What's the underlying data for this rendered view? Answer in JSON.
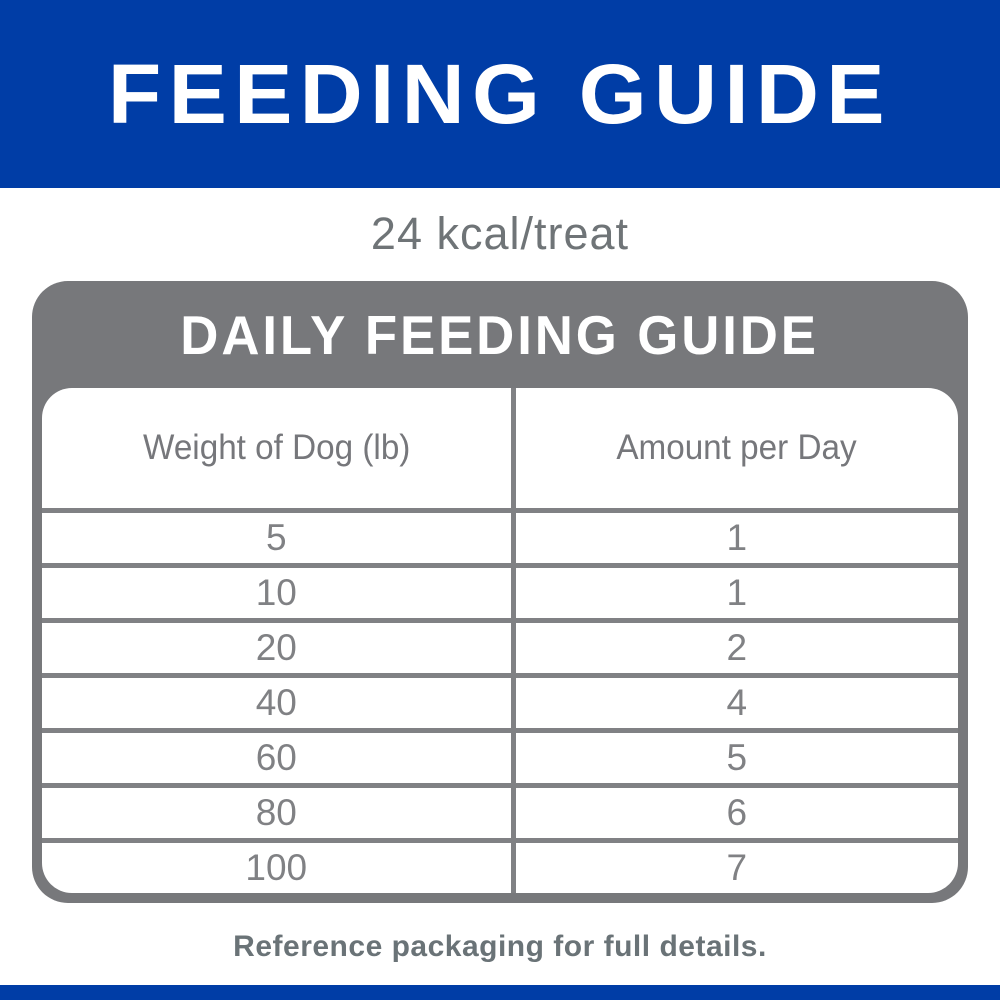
{
  "banner": {
    "title": "FEEDING GUIDE"
  },
  "subtitle": "24 kcal/treat",
  "guide": {
    "title": "DAILY FEEDING GUIDE",
    "table": {
      "columns": [
        "Weight of Dog (lb)",
        "Amount per Day"
      ],
      "rows": [
        {
          "weight": "5",
          "amount": "1"
        },
        {
          "weight": "10",
          "amount": "1"
        },
        {
          "weight": "20",
          "amount": "2"
        },
        {
          "weight": "40",
          "amount": "4"
        },
        {
          "weight": "60",
          "amount": "5"
        },
        {
          "weight": "80",
          "amount": "6"
        },
        {
          "weight": "100",
          "amount": "7"
        }
      ]
    }
  },
  "footer": {
    "note": "Reference packaging for full details."
  },
  "colors": {
    "brand_blue": "#003DA6",
    "panel_gray": "#77787B",
    "table_border_gray": "#808184",
    "text_gray": "#76777B"
  }
}
